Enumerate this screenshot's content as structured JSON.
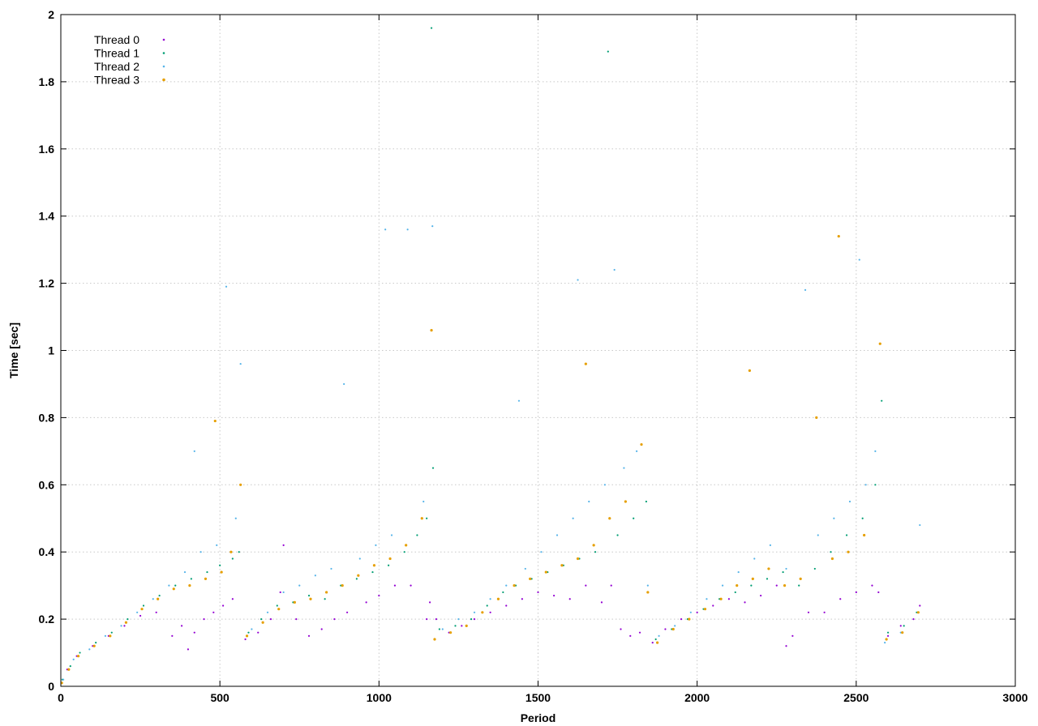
{
  "chart_data": {
    "type": "scatter",
    "title": "",
    "xlabel": "Period",
    "ylabel": "Time [sec]",
    "xlim": [
      0,
      3000
    ],
    "ylim": [
      0,
      2
    ],
    "x_ticks": [
      0,
      500,
      1000,
      1500,
      2000,
      2500,
      3000
    ],
    "y_ticks": [
      0,
      0.2,
      0.4,
      0.6,
      0.8,
      1,
      1.2,
      1.4,
      1.6,
      1.8,
      2
    ],
    "grid": true,
    "legend_position": "top-left",
    "colors": {
      "thread0": "#9400d3",
      "thread1": "#009e73",
      "thread2": "#56b4e9",
      "thread3": "#e69f00",
      "axis": "#000000",
      "grid": "#c8c8c8"
    },
    "series": [
      {
        "name": "Thread 0",
        "color": "#9400d3",
        "points": [
          [
            2,
            0.01
          ],
          [
            20,
            0.05
          ],
          [
            50,
            0.09
          ],
          [
            100,
            0.12
          ],
          [
            150,
            0.15
          ],
          [
            200,
            0.18
          ],
          [
            250,
            0.21
          ],
          [
            300,
            0.22
          ],
          [
            350,
            0.15
          ],
          [
            380,
            0.18
          ],
          [
            400,
            0.11
          ],
          [
            420,
            0.16
          ],
          [
            450,
            0.2
          ],
          [
            480,
            0.22
          ],
          [
            510,
            0.24
          ],
          [
            540,
            0.26
          ],
          [
            580,
            0.14
          ],
          [
            620,
            0.16
          ],
          [
            660,
            0.2
          ],
          [
            690,
            0.28
          ],
          [
            700,
            0.42
          ],
          [
            740,
            0.2
          ],
          [
            780,
            0.15
          ],
          [
            820,
            0.17
          ],
          [
            860,
            0.2
          ],
          [
            900,
            0.22
          ],
          [
            960,
            0.25
          ],
          [
            1000,
            0.27
          ],
          [
            1050,
            0.3
          ],
          [
            1100,
            0.3
          ],
          [
            1150,
            0.2
          ],
          [
            1160,
            0.25
          ],
          [
            1180,
            0.2
          ],
          [
            1220,
            0.16
          ],
          [
            1260,
            0.18
          ],
          [
            1300,
            0.2
          ],
          [
            1350,
            0.22
          ],
          [
            1400,
            0.24
          ],
          [
            1450,
            0.26
          ],
          [
            1500,
            0.28
          ],
          [
            1550,
            0.27
          ],
          [
            1600,
            0.26
          ],
          [
            1650,
            0.3
          ],
          [
            1700,
            0.25
          ],
          [
            1730,
            0.3
          ],
          [
            1760,
            0.17
          ],
          [
            1790,
            0.15
          ],
          [
            1820,
            0.16
          ],
          [
            1860,
            0.13
          ],
          [
            1900,
            0.17
          ],
          [
            1950,
            0.2
          ],
          [
            2000,
            0.22
          ],
          [
            2050,
            0.24
          ],
          [
            2100,
            0.26
          ],
          [
            2150,
            0.25
          ],
          [
            2200,
            0.27
          ],
          [
            2250,
            0.3
          ],
          [
            2280,
            0.12
          ],
          [
            2300,
            0.15
          ],
          [
            2350,
            0.22
          ],
          [
            2400,
            0.22
          ],
          [
            2450,
            0.26
          ],
          [
            2500,
            0.28
          ],
          [
            2550,
            0.3
          ],
          [
            2570,
            0.28
          ],
          [
            2600,
            0.15
          ],
          [
            2640,
            0.18
          ],
          [
            2680,
            0.2
          ],
          [
            2700,
            0.24
          ]
        ]
      },
      {
        "name": "Thread 1",
        "color": "#009e73",
        "points": [
          [
            5,
            0.02
          ],
          [
            30,
            0.06
          ],
          [
            60,
            0.1
          ],
          [
            110,
            0.13
          ],
          [
            160,
            0.16
          ],
          [
            210,
            0.2
          ],
          [
            260,
            0.24
          ],
          [
            310,
            0.27
          ],
          [
            360,
            0.3
          ],
          [
            410,
            0.32
          ],
          [
            460,
            0.34
          ],
          [
            500,
            0.36
          ],
          [
            540,
            0.38
          ],
          [
            560,
            0.4
          ],
          [
            590,
            0.16
          ],
          [
            630,
            0.2
          ],
          [
            680,
            0.24
          ],
          [
            730,
            0.25
          ],
          [
            780,
            0.27
          ],
          [
            830,
            0.26
          ],
          [
            880,
            0.3
          ],
          [
            930,
            0.32
          ],
          [
            980,
            0.34
          ],
          [
            1030,
            0.36
          ],
          [
            1080,
            0.4
          ],
          [
            1120,
            0.45
          ],
          [
            1150,
            0.5
          ],
          [
            1165,
            1.96
          ],
          [
            1170,
            0.65
          ],
          [
            1190,
            0.17
          ],
          [
            1240,
            0.18
          ],
          [
            1290,
            0.2
          ],
          [
            1340,
            0.24
          ],
          [
            1390,
            0.28
          ],
          [
            1430,
            0.3
          ],
          [
            1480,
            0.32
          ],
          [
            1530,
            0.34
          ],
          [
            1580,
            0.36
          ],
          [
            1630,
            0.38
          ],
          [
            1680,
            0.4
          ],
          [
            1720,
            1.89
          ],
          [
            1750,
            0.45
          ],
          [
            1800,
            0.5
          ],
          [
            1840,
            0.55
          ],
          [
            1870,
            0.14
          ],
          [
            1920,
            0.17
          ],
          [
            1970,
            0.2
          ],
          [
            2020,
            0.23
          ],
          [
            2070,
            0.26
          ],
          [
            2120,
            0.28
          ],
          [
            2170,
            0.3
          ],
          [
            2220,
            0.32
          ],
          [
            2270,
            0.34
          ],
          [
            2320,
            0.3
          ],
          [
            2370,
            0.35
          ],
          [
            2420,
            0.4
          ],
          [
            2470,
            0.45
          ],
          [
            2520,
            0.5
          ],
          [
            2560,
            0.6
          ],
          [
            2580,
            0.85
          ],
          [
            2600,
            0.16
          ],
          [
            2650,
            0.18
          ],
          [
            2690,
            0.22
          ]
        ]
      },
      {
        "name": "Thread 2",
        "color": "#56b4e9",
        "points": [
          [
            8,
            0.02
          ],
          [
            40,
            0.08
          ],
          [
            90,
            0.11
          ],
          [
            140,
            0.15
          ],
          [
            190,
            0.18
          ],
          [
            240,
            0.22
          ],
          [
            290,
            0.26
          ],
          [
            340,
            0.3
          ],
          [
            390,
            0.34
          ],
          [
            420,
            0.7
          ],
          [
            440,
            0.4
          ],
          [
            490,
            0.42
          ],
          [
            520,
            1.19
          ],
          [
            550,
            0.5
          ],
          [
            565,
            0.96
          ],
          [
            600,
            0.17
          ],
          [
            650,
            0.22
          ],
          [
            700,
            0.28
          ],
          [
            750,
            0.3
          ],
          [
            800,
            0.33
          ],
          [
            850,
            0.35
          ],
          [
            890,
            0.9
          ],
          [
            940,
            0.38
          ],
          [
            990,
            0.42
          ],
          [
            1020,
            1.36
          ],
          [
            1040,
            0.45
          ],
          [
            1090,
            1.36
          ],
          [
            1140,
            0.55
          ],
          [
            1168,
            1.37
          ],
          [
            1200,
            0.17
          ],
          [
            1250,
            0.2
          ],
          [
            1300,
            0.22
          ],
          [
            1350,
            0.26
          ],
          [
            1400,
            0.3
          ],
          [
            1440,
            0.85
          ],
          [
            1460,
            0.35
          ],
          [
            1510,
            0.4
          ],
          [
            1560,
            0.45
          ],
          [
            1610,
            0.5
          ],
          [
            1625,
            1.21
          ],
          [
            1660,
            0.55
          ],
          [
            1710,
            0.6
          ],
          [
            1740,
            1.24
          ],
          [
            1770,
            0.65
          ],
          [
            1810,
            0.7
          ],
          [
            1845,
            0.3
          ],
          [
            1880,
            0.15
          ],
          [
            1930,
            0.18
          ],
          [
            1980,
            0.22
          ],
          [
            2030,
            0.26
          ],
          [
            2080,
            0.3
          ],
          [
            2130,
            0.34
          ],
          [
            2180,
            0.38
          ],
          [
            2230,
            0.42
          ],
          [
            2280,
            0.35
          ],
          [
            2340,
            1.18
          ],
          [
            2380,
            0.45
          ],
          [
            2430,
            0.5
          ],
          [
            2480,
            0.55
          ],
          [
            2510,
            1.27
          ],
          [
            2530,
            0.6
          ],
          [
            2560,
            0.7
          ],
          [
            2590,
            0.13
          ],
          [
            2640,
            0.16
          ],
          [
            2700,
            0.48
          ]
        ]
      },
      {
        "name": "Thread 3",
        "color": "#e69f00",
        "points": [
          [
            3,
            0.01
          ],
          [
            25,
            0.05
          ],
          [
            55,
            0.09
          ],
          [
            105,
            0.12
          ],
          [
            155,
            0.15
          ],
          [
            205,
            0.19
          ],
          [
            255,
            0.23
          ],
          [
            305,
            0.26
          ],
          [
            355,
            0.29
          ],
          [
            405,
            0.3
          ],
          [
            455,
            0.32
          ],
          [
            485,
            0.79
          ],
          [
            505,
            0.34
          ],
          [
            535,
            0.4
          ],
          [
            565,
            0.6
          ],
          [
            585,
            0.15
          ],
          [
            635,
            0.19
          ],
          [
            685,
            0.23
          ],
          [
            735,
            0.25
          ],
          [
            785,
            0.26
          ],
          [
            835,
            0.28
          ],
          [
            885,
            0.3
          ],
          [
            935,
            0.33
          ],
          [
            985,
            0.36
          ],
          [
            1035,
            0.38
          ],
          [
            1085,
            0.42
          ],
          [
            1135,
            0.5
          ],
          [
            1165,
            1.06
          ],
          [
            1175,
            0.14
          ],
          [
            1225,
            0.16
          ],
          [
            1275,
            0.18
          ],
          [
            1325,
            0.22
          ],
          [
            1375,
            0.26
          ],
          [
            1425,
            0.3
          ],
          [
            1475,
            0.32
          ],
          [
            1525,
            0.34
          ],
          [
            1575,
            0.36
          ],
          [
            1625,
            0.38
          ],
          [
            1650,
            0.96
          ],
          [
            1675,
            0.42
          ],
          [
            1725,
            0.5
          ],
          [
            1775,
            0.55
          ],
          [
            1825,
            0.72
          ],
          [
            1845,
            0.28
          ],
          [
            1875,
            0.13
          ],
          [
            1925,
            0.17
          ],
          [
            1975,
            0.2
          ],
          [
            2025,
            0.23
          ],
          [
            2075,
            0.26
          ],
          [
            2125,
            0.3
          ],
          [
            2165,
            0.94
          ],
          [
            2175,
            0.32
          ],
          [
            2225,
            0.35
          ],
          [
            2275,
            0.3
          ],
          [
            2325,
            0.32
          ],
          [
            2375,
            0.8
          ],
          [
            2425,
            0.38
          ],
          [
            2445,
            1.34
          ],
          [
            2475,
            0.4
          ],
          [
            2525,
            0.45
          ],
          [
            2575,
            1.02
          ],
          [
            2595,
            0.14
          ],
          [
            2645,
            0.16
          ],
          [
            2695,
            0.22
          ]
        ]
      }
    ]
  }
}
